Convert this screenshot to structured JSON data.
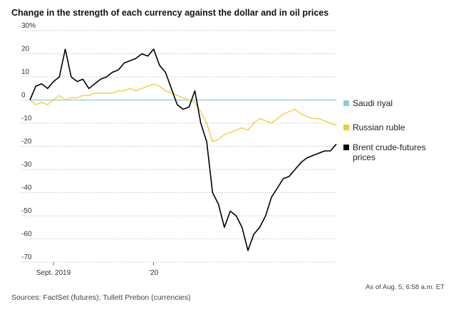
{
  "chart_data": {
    "type": "line",
    "title": "Change in the strength of each currency against the dollar and in oil prices",
    "source": "Sources: FactSet (futures); Tullett Prebon (currencies)",
    "note": "As of Aug. 5, 6:58 a.m. ET",
    "categories": [
      null,
      null,
      null,
      null,
      "Sept. 2019",
      null,
      null,
      null,
      null,
      null,
      null,
      null,
      null,
      null,
      null,
      null,
      null,
      null,
      null,
      null,
      null,
      "'20",
      null,
      null,
      null,
      null,
      null,
      null,
      null,
      null,
      null,
      null,
      null,
      null,
      null,
      null,
      null,
      null,
      null,
      null,
      null,
      null,
      null,
      null,
      null,
      null,
      null,
      null,
      null,
      null,
      null,
      null,
      null
    ],
    "ylim": [
      -70,
      30
    ],
    "yticks": [
      -70,
      -60,
      -50,
      -40,
      -30,
      -20,
      -10,
      0,
      10,
      20,
      {
        "value": 30,
        "label": "30%"
      }
    ],
    "grid": true,
    "series": [
      {
        "name": "Saudi riyal",
        "color": "#8fc8e0",
        "values": [
          0,
          0,
          0,
          0,
          0,
          0,
          0,
          0,
          0,
          0,
          0,
          0,
          0,
          0,
          0,
          0,
          0,
          0,
          0,
          0,
          0,
          0,
          0,
          0,
          0,
          0,
          0,
          0,
          0,
          0,
          0,
          0,
          0,
          0,
          0,
          0,
          0,
          0,
          0,
          0,
          0,
          0,
          0,
          0,
          0,
          0,
          0,
          0,
          0,
          0,
          0,
          0,
          0
        ]
      },
      {
        "name": "Russian ruble",
        "color": "#f2c931",
        "values": [
          0,
          -2,
          -1,
          -2,
          0,
          2,
          0,
          1,
          1,
          2,
          2,
          3,
          3,
          3,
          3,
          4,
          4,
          5,
          4,
          5,
          6,
          7,
          6,
          4,
          3,
          2,
          1,
          0,
          -1,
          -5,
          -10,
          -18,
          -17,
          -15,
          -14,
          -13,
          -12,
          -13,
          -10,
          -8,
          -9,
          -10,
          -8,
          -6,
          -5,
          -4,
          -6,
          -7,
          -8,
          -8,
          -9,
          -10,
          -11
        ]
      },
      {
        "name": "Brent crude-futures prices",
        "color": "#000000",
        "values": [
          0,
          6,
          7,
          5,
          8,
          10,
          22,
          10,
          8,
          9,
          5,
          7,
          9,
          10,
          12,
          13,
          16,
          17,
          18,
          20,
          19,
          22,
          15,
          12,
          5,
          -2,
          -4,
          -3,
          4,
          -10,
          -18,
          -40,
          -45,
          -55,
          -48,
          -50,
          -55,
          -65,
          -58,
          -55,
          -50,
          -42,
          -38,
          -34,
          -33,
          -30,
          -27,
          -25,
          -24,
          -23,
          -22,
          -22,
          -19
        ]
      }
    ]
  }
}
